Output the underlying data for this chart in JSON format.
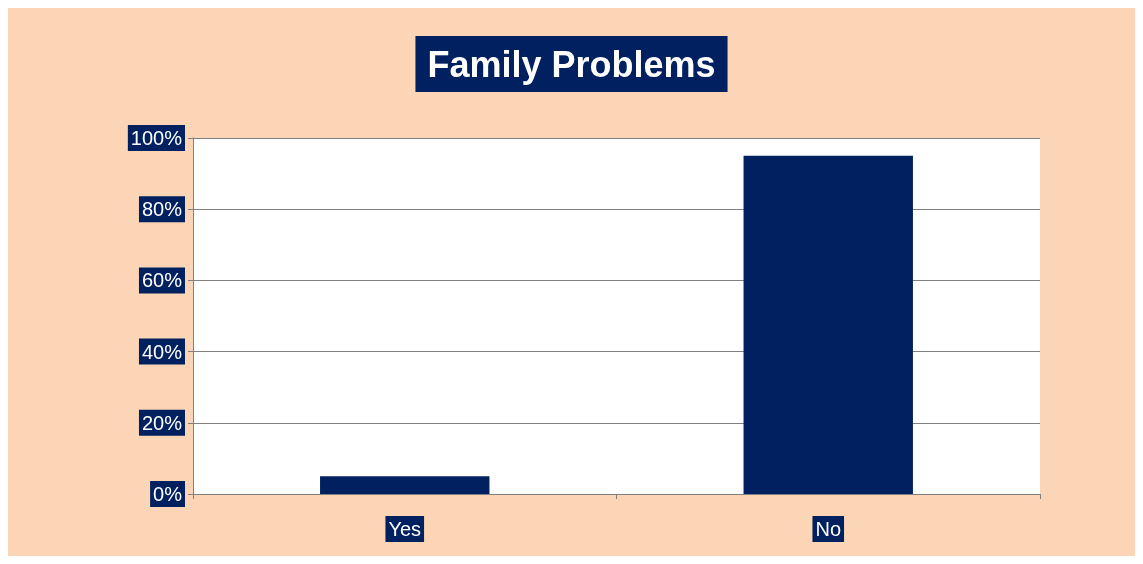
{
  "chart_data": {
    "type": "bar",
    "title": "Family Problems",
    "categories": [
      "Yes",
      "No"
    ],
    "values": [
      5,
      95
    ],
    "color": "#002060",
    "ylim": [
      0,
      100
    ],
    "yticks": [
      {
        "value": 0,
        "label": "0%"
      },
      {
        "value": 20,
        "label": "20%"
      },
      {
        "value": 40,
        "label": "40%"
      },
      {
        "value": 60,
        "label": "60%"
      },
      {
        "value": 80,
        "label": "80%"
      },
      {
        "value": 100,
        "label": "100%"
      }
    ],
    "grid": "y"
  }
}
